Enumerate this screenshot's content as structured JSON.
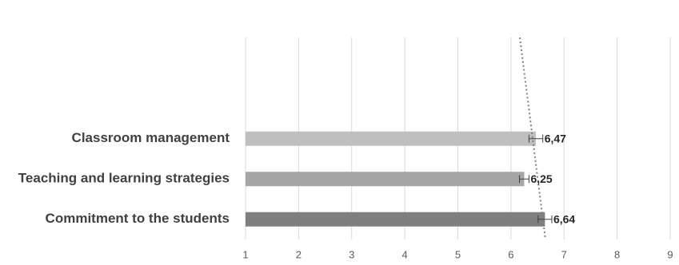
{
  "chart_data": {
    "type": "bar",
    "orientation": "horizontal",
    "categories": [
      "Classroom management",
      "Teaching and learning strategies",
      "Commitment to the students"
    ],
    "values": [
      6.47,
      6.25,
      6.64
    ],
    "value_labels": [
      "6,47",
      "6,25",
      "6,64"
    ],
    "errors": [
      0.13,
      0.09,
      0.13
    ],
    "colors": [
      "#bfbfbf",
      "#a6a6a6",
      "#7f7f7f"
    ],
    "xlim": [
      1,
      9
    ],
    "xticks": [
      1,
      2,
      3,
      4,
      5,
      6,
      7,
      8,
      9
    ],
    "grid": true
  }
}
